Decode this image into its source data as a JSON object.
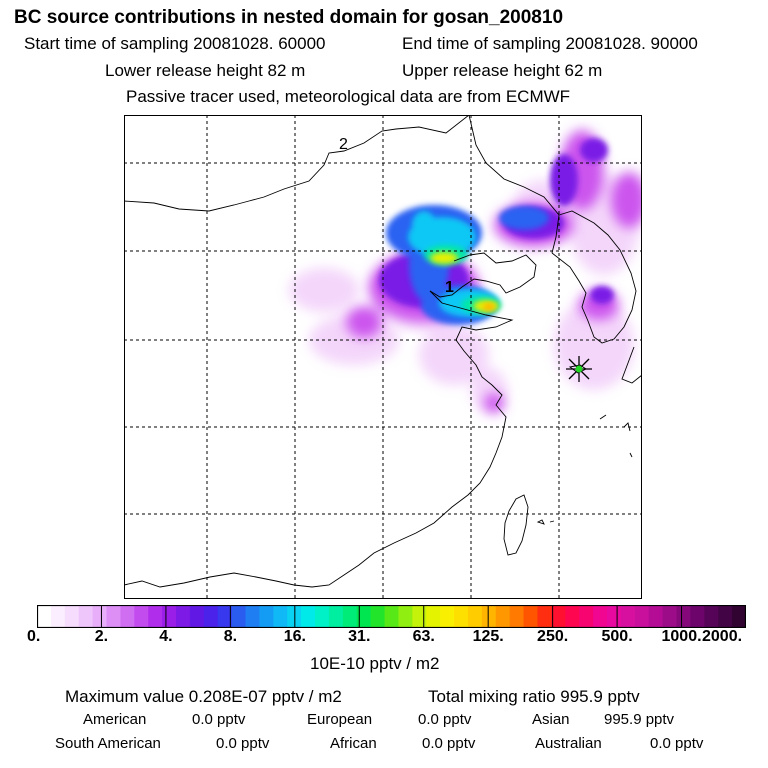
{
  "header": {
    "title": "BC  source contributions in nested domain for gosan_200810",
    "start_label": "Start time of sampling 20081028. 60000",
    "end_label": "End time of sampling 20081028. 90000",
    "lower_label": "Lower release height   82 m",
    "upper_label": "Upper release height   62 m",
    "tracer_label": "Passive tracer used, meteorological data are from ECMWF"
  },
  "map": {
    "markers": [
      {
        "label": "1"
      },
      {
        "label": "2"
      }
    ],
    "receptor_symbol": "star"
  },
  "colorbar": {
    "labels": [
      "0.",
      "2.",
      "4.",
      "8.",
      "16.",
      "31.",
      "63.",
      "125.",
      "250.",
      "500.",
      "1000.",
      "2000."
    ],
    "units": "10E-10 pptv / m2",
    "colors": [
      "#ffffff",
      "#fbeefe",
      "#f6dcfd",
      "#efc6fb",
      "#e8aef9",
      "#dd8ff6",
      "#d06ef2",
      "#c24cee",
      "#b02eeb",
      "#9a1ee8",
      "#7d1ae6",
      "#6218e4",
      "#4a22ea",
      "#3838ee",
      "#2a5cf0",
      "#1e7ef2",
      "#149cf4",
      "#10b8f5",
      "#0ad2f2",
      "#00eaea",
      "#00f0c8",
      "#00eea0",
      "#00ec78",
      "#00e650",
      "#22e42a",
      "#58e818",
      "#90ee10",
      "#c4f20a",
      "#e4f400",
      "#f8f000",
      "#fee000",
      "#ffcc00",
      "#ffb400",
      "#ff9800",
      "#ff7a00",
      "#ff5400",
      "#ff2e10",
      "#ff1030",
      "#ff0650",
      "#f80470",
      "#f00690",
      "#e80aa0",
      "#d810a0",
      "#c8109c",
      "#b40c94",
      "#9c0c88",
      "#84087a",
      "#6c046c",
      "#560458",
      "#420444",
      "#300330"
    ]
  },
  "stats": {
    "max_label": "Maximum value  0.208E-07 pptv / m2",
    "total_label": "Total mixing ratio      995.9 pptv",
    "american_name": "American",
    "american_value": "0.0 pptv",
    "european_name": "European",
    "european_value": "0.0 pptv",
    "asian_name": "Asian",
    "asian_value": "995.9 pptv",
    "south_american_name": "South American",
    "south_american_value": "0.0 pptv",
    "african_name": "African",
    "african_value": "0.0 pptv",
    "australian_name": "Australian",
    "australian_value": "0.0 pptv"
  }
}
